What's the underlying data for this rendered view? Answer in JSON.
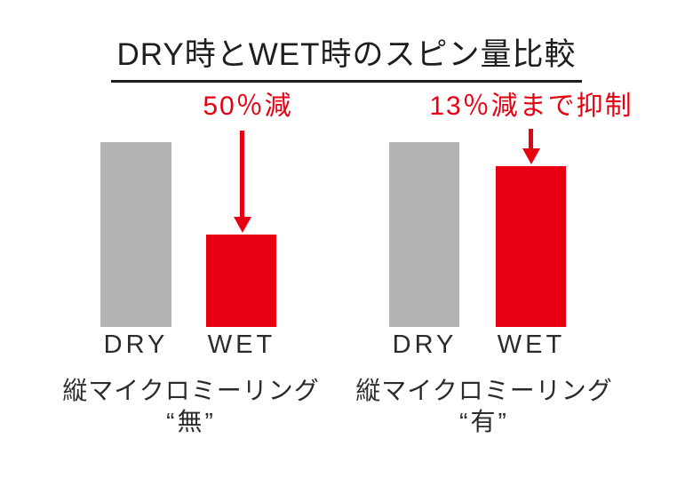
{
  "colors": {
    "accent_red": "#e60012",
    "bar_gray": "#b4b4b4",
    "text_dark": "#1e1e1e"
  },
  "chart_data": {
    "type": "bar",
    "title": "DRY時とWET時のスピン量比較",
    "ylabel": "",
    "xlabel": "",
    "ylim": [
      0,
      100
    ],
    "grid": false,
    "value_note": "relative spin amount, DRY bar = 100",
    "groups": [
      {
        "annotation": "50％減",
        "categories": [
          "DRY",
          "WET"
        ],
        "values": [
          100,
          50
        ],
        "colors": [
          "#b4b4b4",
          "#e60012"
        ],
        "caption": [
          "縦マイクロミーリング",
          "“無”"
        ]
      },
      {
        "annotation": "13％減まで抑制",
        "categories": [
          "DRY",
          "WET"
        ],
        "values": [
          100,
          87
        ],
        "colors": [
          "#b4b4b4",
          "#e60012"
        ],
        "caption": [
          "縦マイクロミーリング",
          "“有”"
        ]
      }
    ]
  }
}
